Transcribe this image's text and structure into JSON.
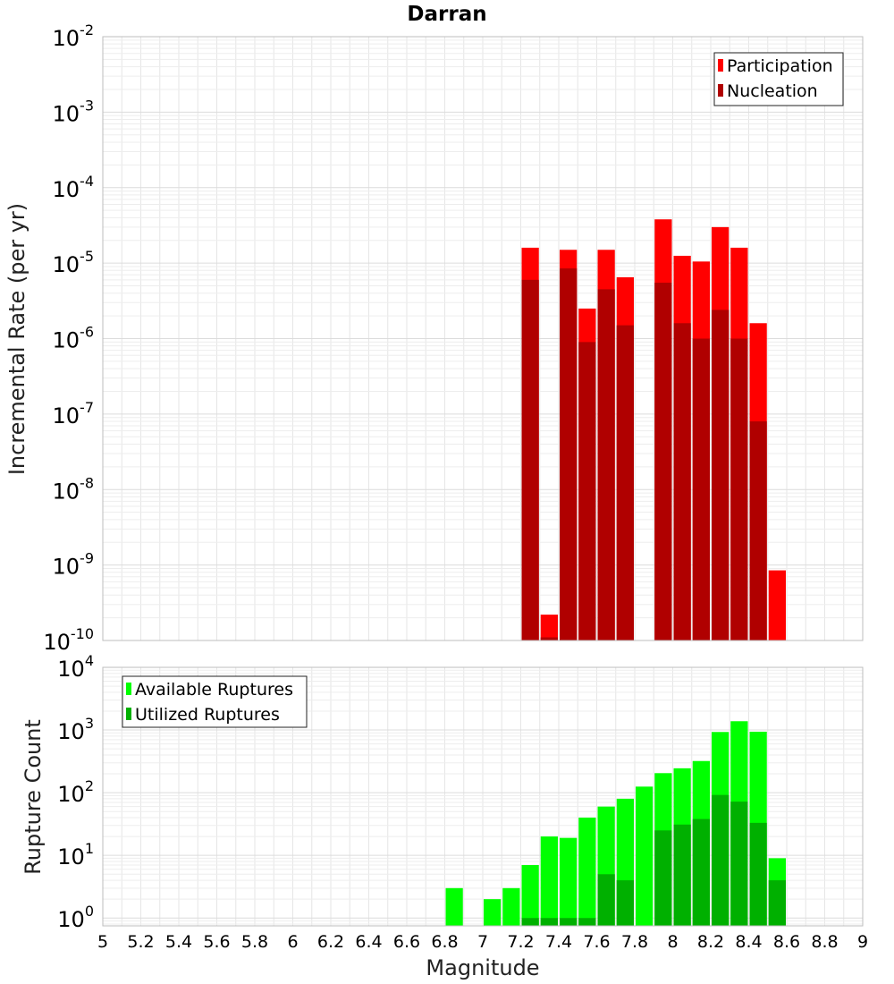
{
  "chart_data": [
    {
      "type": "bar",
      "title": "Darran",
      "xlabel": "",
      "ylabel": "Incremental Rate (per yr)",
      "yscale": "log",
      "xlim": [
        5,
        9
      ],
      "ylim": [
        1e-10,
        0.01
      ],
      "grid": true,
      "legend_position": "top-right",
      "bar_width": 0.1,
      "y_ticks": [
        {
          "base": "10",
          "exp": "-10"
        },
        {
          "base": "10",
          "exp": "-9"
        },
        {
          "base": "10",
          "exp": "-8"
        },
        {
          "base": "10",
          "exp": "-7"
        },
        {
          "base": "10",
          "exp": "-6"
        },
        {
          "base": "10",
          "exp": "-5"
        },
        {
          "base": "10",
          "exp": "-4"
        },
        {
          "base": "10",
          "exp": "-3"
        },
        {
          "base": "10",
          "exp": "-2"
        }
      ],
      "series": [
        {
          "name": "Participation",
          "color": "#ff0000",
          "points": [
            {
              "x": 7.25,
              "y": 1.6e-05
            },
            {
              "x": 7.35,
              "y": 2.2e-10
            },
            {
              "x": 7.45,
              "y": 1.5e-05
            },
            {
              "x": 7.55,
              "y": 2.5e-06
            },
            {
              "x": 7.65,
              "y": 1.5e-05
            },
            {
              "x": 7.75,
              "y": 6.5e-06
            },
            {
              "x": 7.95,
              "y": 3.8e-05
            },
            {
              "x": 8.05,
              "y": 1.25e-05
            },
            {
              "x": 8.15,
              "y": 1.05e-05
            },
            {
              "x": 8.25,
              "y": 3e-05
            },
            {
              "x": 8.35,
              "y": 1.6e-05
            },
            {
              "x": 8.45,
              "y": 1.6e-06
            },
            {
              "x": 8.55,
              "y": 8.5e-10
            }
          ]
        },
        {
          "name": "Nucleation",
          "color": "#b00000",
          "points": [
            {
              "x": 7.25,
              "y": 6e-06
            },
            {
              "x": 7.35,
              "y": 1.1e-10
            },
            {
              "x": 7.45,
              "y": 8.5e-06
            },
            {
              "x": 7.55,
              "y": 9e-07
            },
            {
              "x": 7.65,
              "y": 4.5e-06
            },
            {
              "x": 7.75,
              "y": 1.5e-06
            },
            {
              "x": 7.95,
              "y": 5.5e-06
            },
            {
              "x": 8.05,
              "y": 1.6e-06
            },
            {
              "x": 8.15,
              "y": 1e-06
            },
            {
              "x": 8.25,
              "y": 2.4e-06
            },
            {
              "x": 8.35,
              "y": 1e-06
            },
            {
              "x": 8.45,
              "y": 8e-08
            }
          ]
        }
      ]
    },
    {
      "type": "bar",
      "title": "",
      "xlabel": "Magnitude",
      "ylabel": "Rupture Count",
      "yscale": "log",
      "xlim": [
        5,
        9
      ],
      "ylim": [
        0.75,
        10000
      ],
      "grid": true,
      "legend_position": "top-left",
      "bar_width": 0.1,
      "x_ticks": [
        "5",
        "5.2",
        "5.4",
        "5.6",
        "5.8",
        "6",
        "6.2",
        "6.4",
        "6.6",
        "6.8",
        "7",
        "7.2",
        "7.4",
        "7.6",
        "7.8",
        "8",
        "8.2",
        "8.4",
        "8.6",
        "8.8",
        "9"
      ],
      "y_ticks": [
        {
          "base": "10",
          "exp": "0"
        },
        {
          "base": "10",
          "exp": "1"
        },
        {
          "base": "10",
          "exp": "2"
        },
        {
          "base": "10",
          "exp": "3"
        },
        {
          "base": "10",
          "exp": "4"
        }
      ],
      "series": [
        {
          "name": "Available Ruptures",
          "color": "#00ff00",
          "points": [
            {
              "x": 6.85,
              "y": 3
            },
            {
              "x": 7.05,
              "y": 2
            },
            {
              "x": 7.15,
              "y": 3
            },
            {
              "x": 7.25,
              "y": 7
            },
            {
              "x": 7.35,
              "y": 20
            },
            {
              "x": 7.45,
              "y": 19
            },
            {
              "x": 7.55,
              "y": 40
            },
            {
              "x": 7.65,
              "y": 60
            },
            {
              "x": 7.75,
              "y": 80
            },
            {
              "x": 7.85,
              "y": 125
            },
            {
              "x": 7.95,
              "y": 205
            },
            {
              "x": 8.05,
              "y": 245
            },
            {
              "x": 8.15,
              "y": 320
            },
            {
              "x": 8.25,
              "y": 930
            },
            {
              "x": 8.35,
              "y": 1380
            },
            {
              "x": 8.45,
              "y": 940
            },
            {
              "x": 8.55,
              "y": 9
            }
          ]
        },
        {
          "name": "Utilized Ruptures",
          "color": "#00b000",
          "points": [
            {
              "x": 7.25,
              "y": 1
            },
            {
              "x": 7.35,
              "y": 1
            },
            {
              "x": 7.45,
              "y": 1
            },
            {
              "x": 7.55,
              "y": 1
            },
            {
              "x": 7.65,
              "y": 5
            },
            {
              "x": 7.75,
              "y": 4
            },
            {
              "x": 7.95,
              "y": 25
            },
            {
              "x": 8.05,
              "y": 31
            },
            {
              "x": 8.15,
              "y": 38
            },
            {
              "x": 8.25,
              "y": 92
            },
            {
              "x": 8.35,
              "y": 72
            },
            {
              "x": 8.45,
              "y": 33
            },
            {
              "x": 8.55,
              "y": 4
            }
          ]
        }
      ]
    }
  ]
}
